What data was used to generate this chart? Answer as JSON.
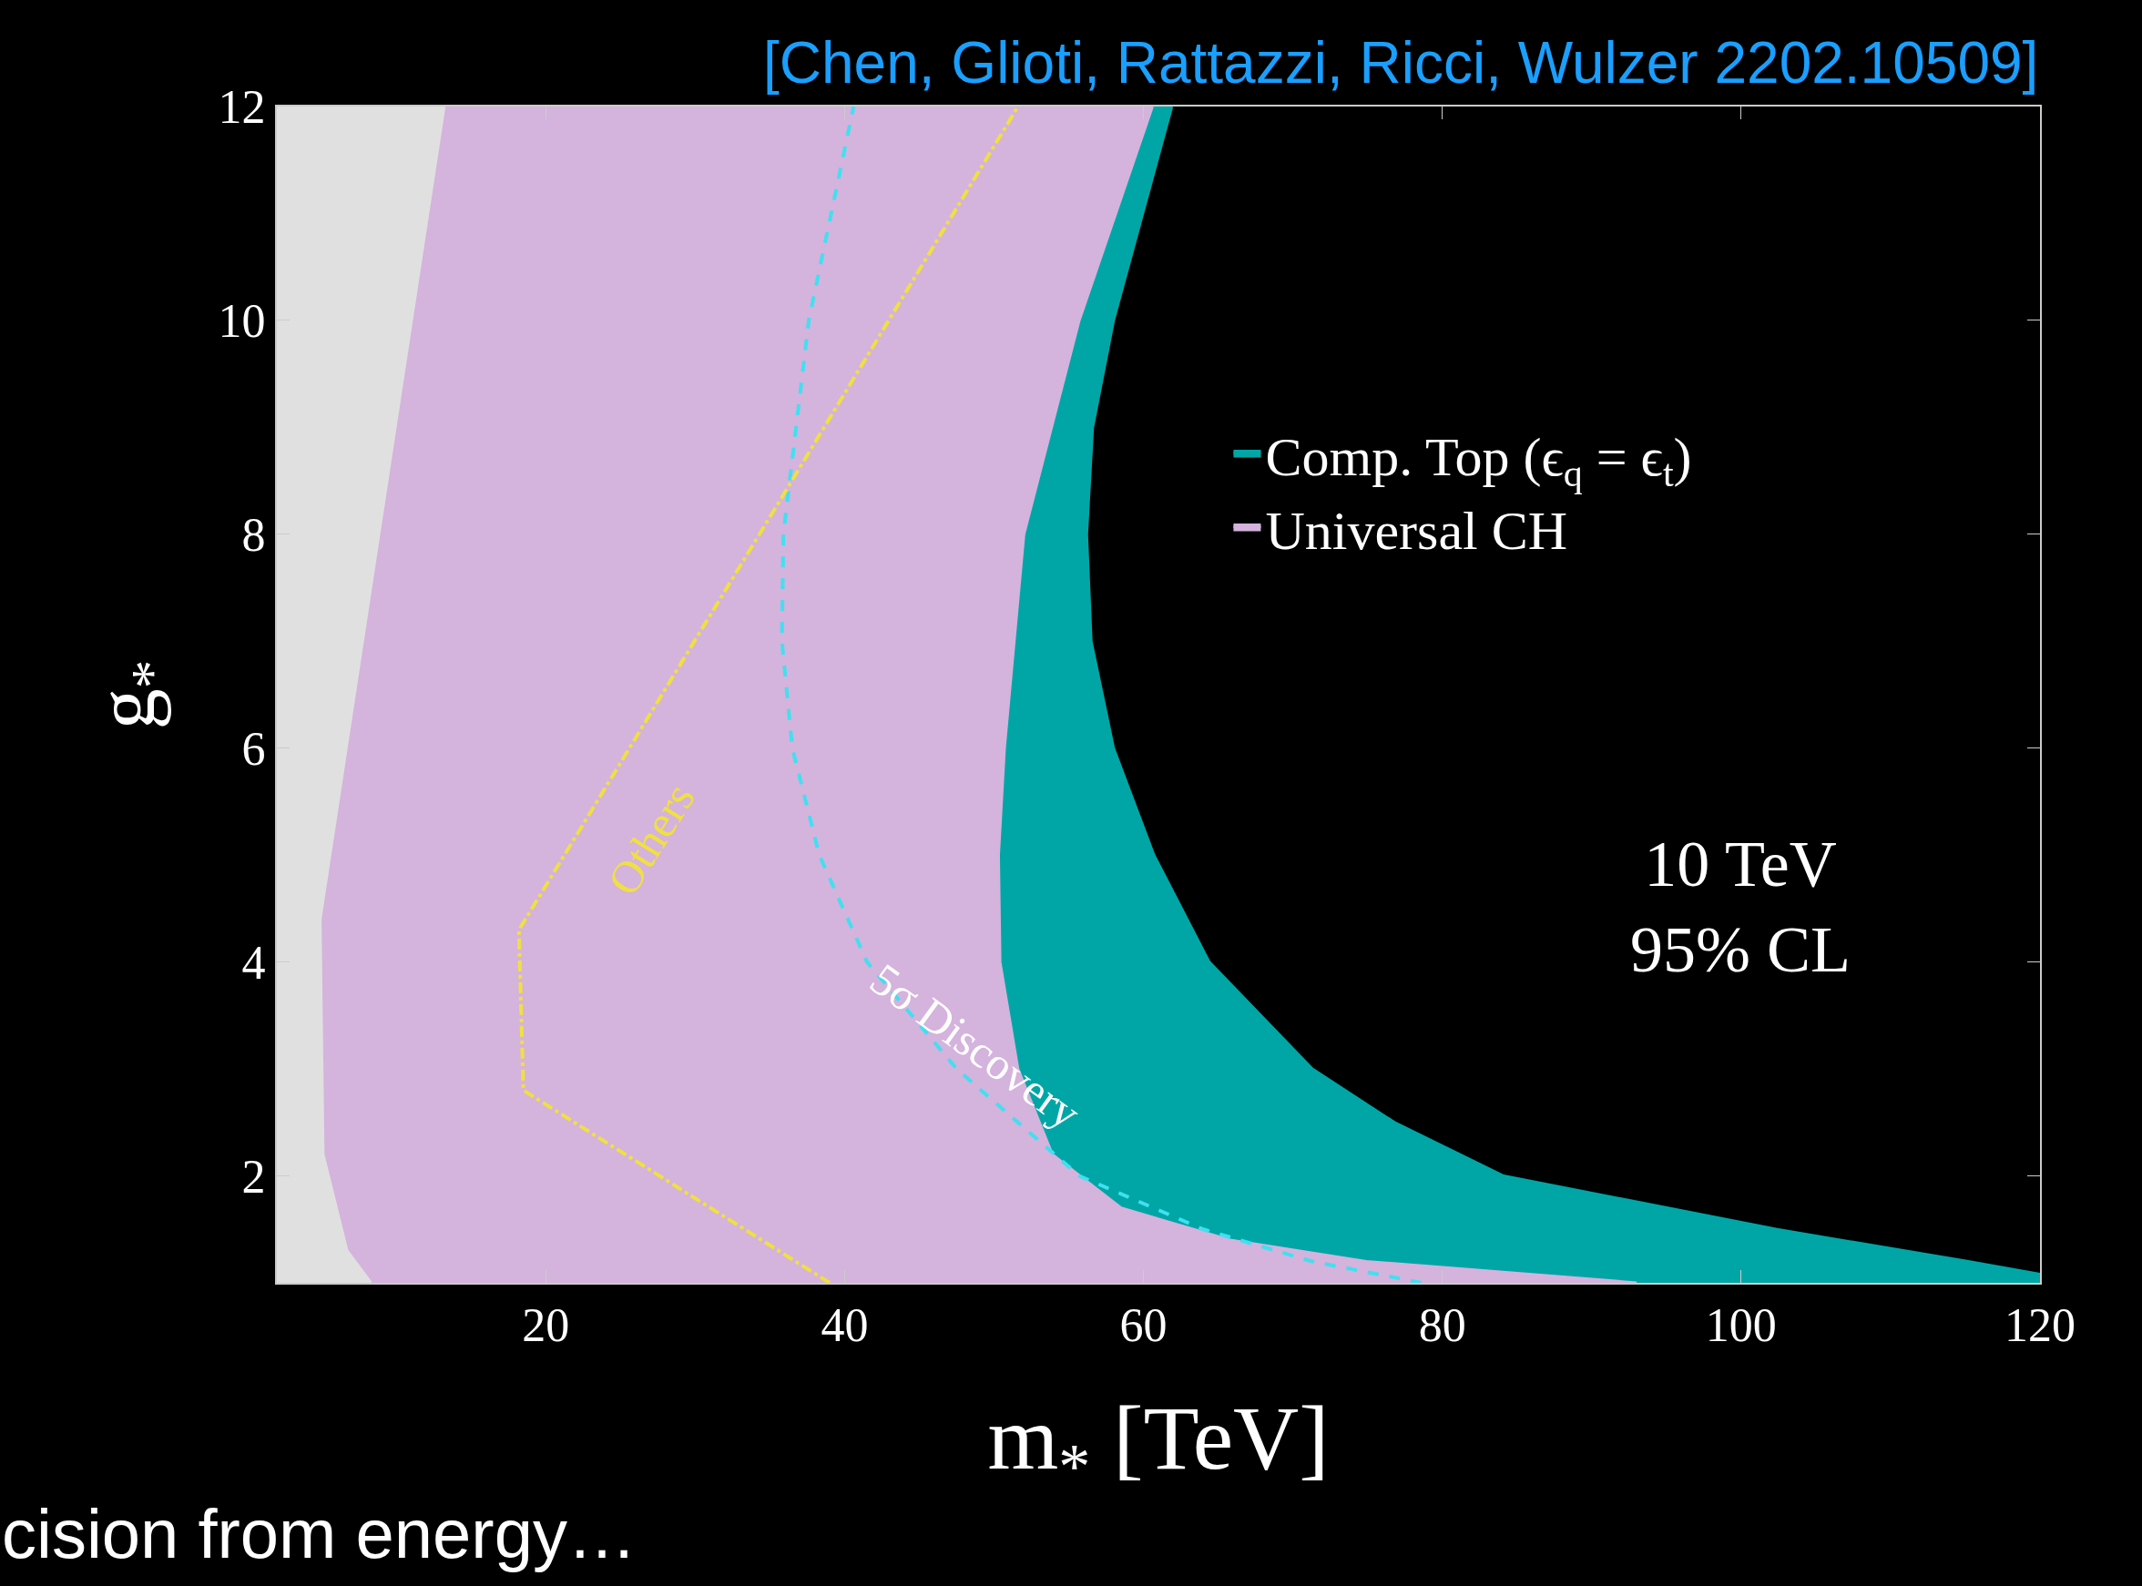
{
  "chart_data": {
    "type": "area",
    "xlabel": "m$_{*}$ [TeV]",
    "ylabel": "g$_{*}$",
    "xlim": [
      2,
      120
    ],
    "ylim": [
      1,
      12
    ],
    "xticks": [
      20,
      40,
      60,
      80,
      100,
      120
    ],
    "yticks": [
      2,
      4,
      6,
      8,
      10,
      12
    ],
    "grid": false,
    "legend": "right",
    "series": [
      {
        "name": "Comp. Top (ϵ$_{q}$ = ϵ$_{t}$)",
        "color": "#00a6a6",
        "x": [
          120,
          120,
          115.2,
          102.4,
          84.1,
          76.8,
          71.3,
          64.4,
          60.7,
          58,
          56.5,
          56.2,
          56.6,
          58,
          61.9
        ],
        "values": [
          1,
          1.08,
          1.2,
          1.5,
          2,
          2.5,
          3,
          4,
          5,
          6,
          7,
          8,
          9,
          10,
          12
        ]
      },
      {
        "name": "Universal CH",
        "color": "#d4b3dd",
        "x": [
          93,
          88.7,
          74.9,
          65.8,
          58.5,
          53.9,
          51.6,
          50.4,
          50.3,
          50.7,
          52,
          55.7,
          60.6
        ],
        "values": [
          1,
          1.05,
          1.2,
          1.4,
          1.7,
          2.2,
          3,
          4,
          5,
          6,
          8,
          10,
          12
        ]
      },
      {
        "color": "#e0e0e0",
        "x": [
          8.3,
          6.7,
          5.1,
          4.9,
          13.2
        ],
        "values": [
          1,
          1.3,
          2.2,
          4.4,
          12
        ]
      },
      {
        "type": "line",
        "color": "#40e0f0",
        "line_style": "dashed",
        "x": [
          78.6,
          71.3,
          64,
          55.7,
          47.5,
          41.5,
          38.3,
          36.5,
          35.8,
          35.9,
          37.6,
          40.6
        ],
        "values": [
          1,
          1.2,
          1.5,
          2,
          3,
          4,
          5,
          6,
          7,
          8,
          10,
          12
        ]
      },
      {
        "type": "line",
        "color": "#f0e040",
        "line_style": "dashdot",
        "x": [
          39.0,
          18.5,
          18.2,
          35.6,
          51.6
        ],
        "values": [
          1,
          2.8,
          4.3,
          8.3,
          12
        ]
      }
    ],
    "annotations": [
      "[Chen, Glioti, Rattazzi, Ricci, Wulzer 2202.10509]",
      "Others",
      "5σ Discovery",
      "10 TeV\n95% CL",
      "cision from energy…"
    ]
  }
}
